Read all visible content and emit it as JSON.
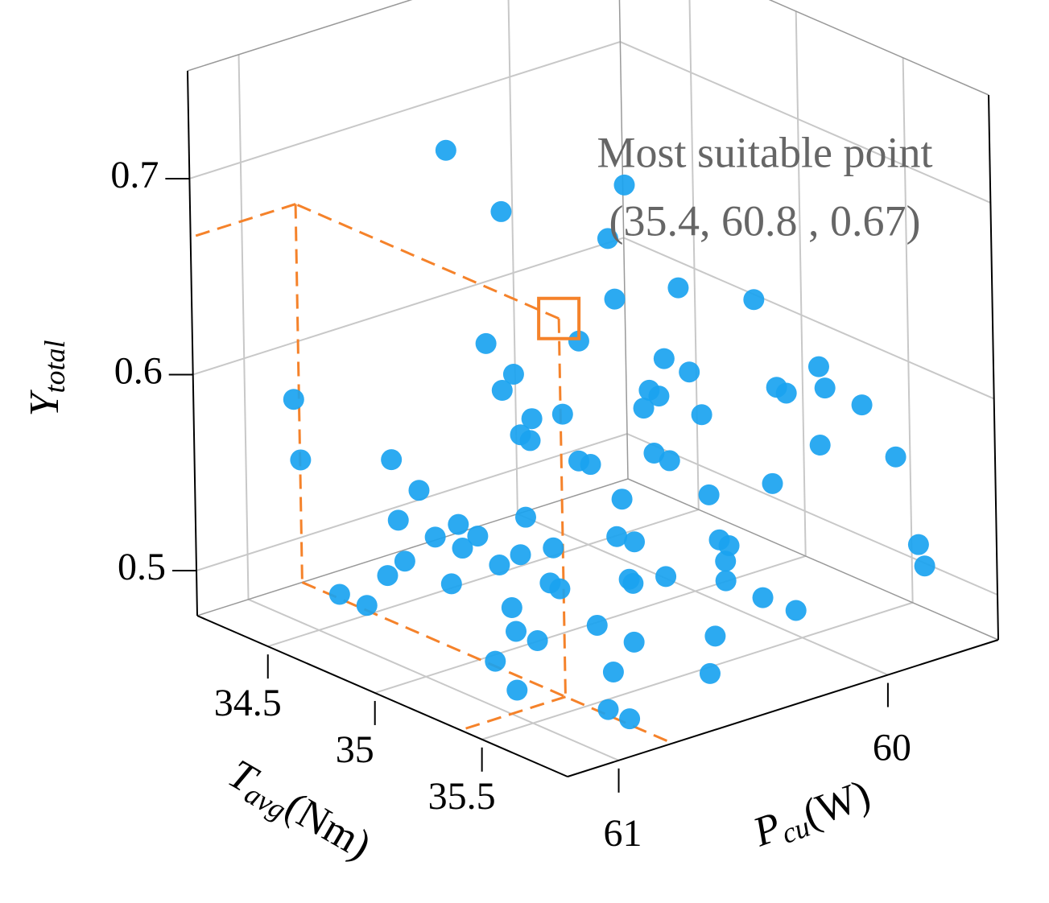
{
  "chart_data": {
    "type": "scatter3d",
    "xlabel": {
      "main": "T",
      "sub": "avg",
      "unit": "(Nm)"
    },
    "ylabel": {
      "main": "P",
      "sub": "cu",
      "unit": "(W)"
    },
    "zlabel": {
      "main": "Y",
      "sub": "total"
    },
    "xlim": [
      34.17,
      35.9
    ],
    "ylim": [
      61.19,
      59.59
    ],
    "zlim": [
      0.477,
      0.755
    ],
    "xticks": [
      34.5,
      35,
      35.5
    ],
    "yticks": [
      61,
      60
    ],
    "zticks": [
      0.5,
      0.6,
      0.7
    ],
    "grid": true,
    "color": "#1aa3f0",
    "highlight_color": "#f5822a",
    "highlight": {
      "x": 35.4,
      "y": 60.8,
      "z": 0.67
    },
    "annotation": [
      "Most suitable point",
      "(35.4, 60.8 , 0.67)"
    ],
    "x": [
      34.3,
      34.5,
      34.6,
      34.8,
      35.0,
      35.2,
      34.4,
      34.7,
      34.9,
      35.1,
      35.3,
      35.5,
      35.6,
      35.7,
      34.5,
      34.8,
      35.0,
      35.2,
      35.4,
      35.6,
      34.6,
      34.9,
      35.1,
      35.3,
      35.5,
      35.7,
      34.4,
      34.7,
      35.0,
      35.2,
      35.4,
      35.6,
      34.5,
      34.8,
      35.0,
      35.3,
      35.5,
      35.7,
      34.6,
      34.9,
      35.1,
      35.4,
      35.6,
      35.8,
      34.5,
      34.7,
      35.0,
      35.2,
      35.5,
      35.7,
      34.4,
      34.6,
      34.9,
      35.1,
      35.3,
      35.6,
      34.7,
      35.0,
      35.2,
      35.4,
      35.6,
      35.8,
      34.8,
      35.1,
      35.3,
      35.5,
      35.7,
      34.6,
      34.9,
      35.2,
      35.4,
      35.6,
      35.8,
      35.0,
      35.3,
      35.5,
      35.7,
      34.8,
      35.1,
      35.4
    ],
    "y": [
      60.9,
      60.7,
      61.0,
      60.5,
      60.8,
      60.3,
      60.6,
      60.9,
      60.4,
      60.7,
      60.2,
      60.5,
      60.0,
      59.8,
      60.3,
      60.6,
      60.1,
      60.9,
      60.4,
      60.7,
      60.8,
      60.2,
      60.5,
      60.0,
      59.9,
      60.3,
      61.0,
      60.4,
      60.7,
      60.2,
      60.6,
      60.1,
      60.5,
      60.8,
      60.3,
      60.9,
      60.4,
      59.7,
      60.1,
      60.6,
      60.3,
      60.0,
      60.8,
      60.5,
      60.2,
      60.0,
      60.9,
      60.4,
      60.7,
      60.2,
      60.4,
      60.7,
      60.1,
      60.8,
      60.5,
      60.0,
      60.3,
      60.6,
      60.1,
      60.9,
      60.4,
      59.8,
      60.7,
      60.2,
      60.6,
      60.1,
      60.5,
      60.9,
      60.3,
      60.8,
      60.2,
      60.7,
      60.0,
      60.5,
      60.9,
      60.3,
      60.8,
      60.0,
      60.6,
      60.2
    ],
    "z": [
      0.55,
      0.52,
      0.5,
      0.6,
      0.54,
      0.57,
      0.49,
      0.51,
      0.58,
      0.55,
      0.59,
      0.53,
      0.62,
      0.57,
      0.66,
      0.62,
      0.6,
      0.49,
      0.58,
      0.54,
      0.56,
      0.63,
      0.57,
      0.64,
      0.6,
      0.52,
      0.59,
      0.56,
      0.61,
      0.65,
      0.55,
      0.5,
      0.7,
      0.53,
      0.67,
      0.48,
      0.63,
      0.51,
      0.59,
      0.49,
      0.52,
      0.6,
      0.48,
      0.56,
      0.55,
      0.67,
      0.52,
      0.51,
      0.49,
      0.62,
      0.5,
      0.54,
      0.57,
      0.53,
      0.56,
      0.58,
      0.48,
      0.58,
      0.54,
      0.51,
      0.5,
      0.53,
      0.52,
      0.59,
      0.5,
      0.56,
      0.49,
      0.49,
      0.55,
      0.54,
      0.52,
      0.51,
      0.61,
      0.5,
      0.51,
      0.54,
      0.48,
      0.57,
      0.53,
      0.51
    ]
  }
}
